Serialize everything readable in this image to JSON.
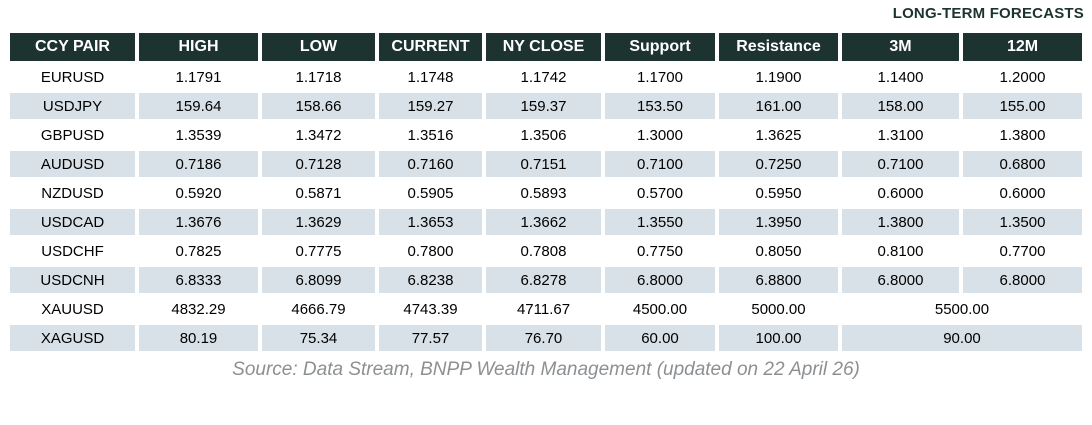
{
  "title": "LONG-TERM FORECASTS",
  "table": {
    "columns": [
      "CCY PAIR",
      "HIGH",
      "LOW",
      "CURRENT",
      "NY CLOSE",
      "Support",
      "Resistance",
      "3M",
      "12M"
    ],
    "rows": [
      {
        "pair": "EURUSD",
        "values": [
          "1.1791",
          "1.1718",
          "1.1748",
          "1.1742",
          "1.1700",
          "1.1900",
          "1.1400",
          "1.2000"
        ]
      },
      {
        "pair": "USDJPY",
        "values": [
          "159.64",
          "158.66",
          "159.27",
          "159.37",
          "153.50",
          "161.00",
          "158.00",
          "155.00"
        ]
      },
      {
        "pair": "GBPUSD",
        "values": [
          "1.3539",
          "1.3472",
          "1.3516",
          "1.3506",
          "1.3000",
          "1.3625",
          "1.3100",
          "1.3800"
        ]
      },
      {
        "pair": "AUDUSD",
        "values": [
          "0.7186",
          "0.7128",
          "0.7160",
          "0.7151",
          "0.7100",
          "0.7250",
          "0.7100",
          "0.6800"
        ]
      },
      {
        "pair": "NZDUSD",
        "values": [
          "0.5920",
          "0.5871",
          "0.5905",
          "0.5893",
          "0.5700",
          "0.5950",
          "0.6000",
          "0.6000"
        ]
      },
      {
        "pair": "USDCAD",
        "values": [
          "1.3676",
          "1.3629",
          "1.3653",
          "1.3662",
          "1.3550",
          "1.3950",
          "1.3800",
          "1.3500"
        ]
      },
      {
        "pair": "USDCHF",
        "values": [
          "0.7825",
          "0.7775",
          "0.7800",
          "0.7808",
          "0.7750",
          "0.8050",
          "0.8100",
          "0.7700"
        ]
      },
      {
        "pair": "USDCNH",
        "values": [
          "6.8333",
          "6.8099",
          "6.8238",
          "6.8278",
          "6.8000",
          "6.8800",
          "6.8000",
          "6.8000"
        ]
      },
      {
        "pair": "XAUUSD",
        "values": [
          "4832.29",
          "4666.79",
          "4743.39",
          "4711.67",
          "4500.00",
          "5000.00"
        ],
        "merged_forecast": "5500.00"
      },
      {
        "pair": "XAGUSD",
        "values": [
          "80.19",
          "75.34",
          "77.57",
          "76.70",
          "60.00",
          "100.00"
        ],
        "merged_forecast": "90.00"
      }
    ]
  },
  "footer": {
    "source": "Source: Data Stream, BNPP Wealth Management (updated on 22 April 26)"
  },
  "colors": {
    "header_bg": "#1d3330",
    "header_text": "#ffffff",
    "row_bg": "#ffffff",
    "row_alt_bg": "#d8e1e7",
    "title_color": "#1d3330",
    "source_color": "#8c9093"
  }
}
